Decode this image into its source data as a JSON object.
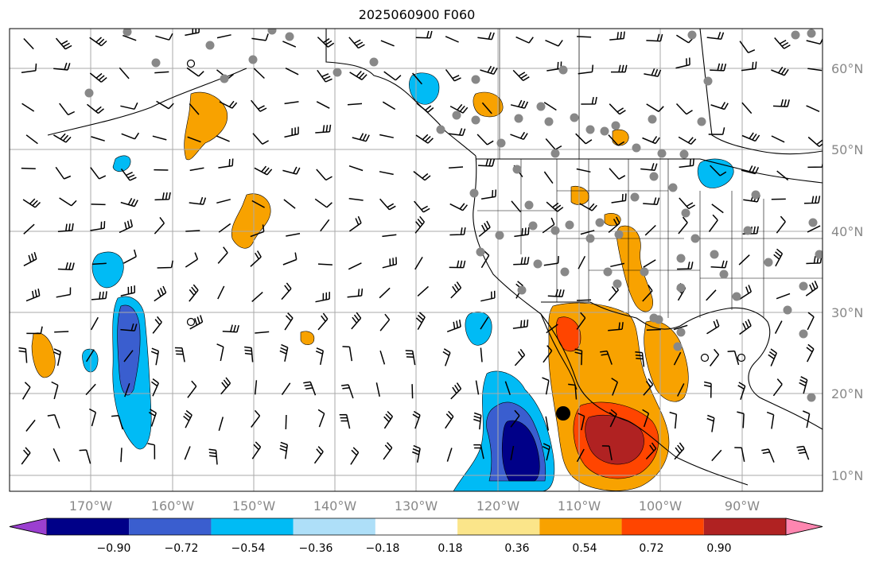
{
  "title": "2025060900 F060",
  "map": {
    "projection": "PlateCarree",
    "lon_range": [
      -180,
      -80
    ],
    "lat_range": [
      7,
      64
    ],
    "gridlines": true,
    "lat_labels": [
      "60°N",
      "50°N",
      "40°N",
      "30°N",
      "20°N",
      "10°N"
    ],
    "lon_labels": [
      "170°W",
      "160°W",
      "150°W",
      "140°W",
      "130°W",
      "120°W",
      "110°W",
      "100°W",
      "90°W"
    ],
    "coastline_color": "#000000",
    "grid_color": "#aaaaaa",
    "barb_color": "#000000",
    "station_dot_color": "#888888"
  },
  "colorbar": {
    "tick_labels": [
      "−0.90",
      "−0.72",
      "−0.54",
      "−0.36",
      "−0.18",
      "0.18",
      "0.36",
      "0.54",
      "0.72",
      "0.90"
    ],
    "bins": [
      {
        "color": "#9b3fd0"
      },
      {
        "color": "#000088"
      },
      {
        "color": "#3a5ecf"
      },
      {
        "color": "#00bbf5"
      },
      {
        "color": "#aedff8"
      },
      {
        "color": "#ffffff"
      },
      {
        "color": "#fbe58a"
      },
      {
        "color": "#f8a200"
      },
      {
        "color": "#ff4500"
      },
      {
        "color": "#b02222"
      },
      {
        "color": "#ff86b0"
      }
    ],
    "extend": "both"
  }
}
